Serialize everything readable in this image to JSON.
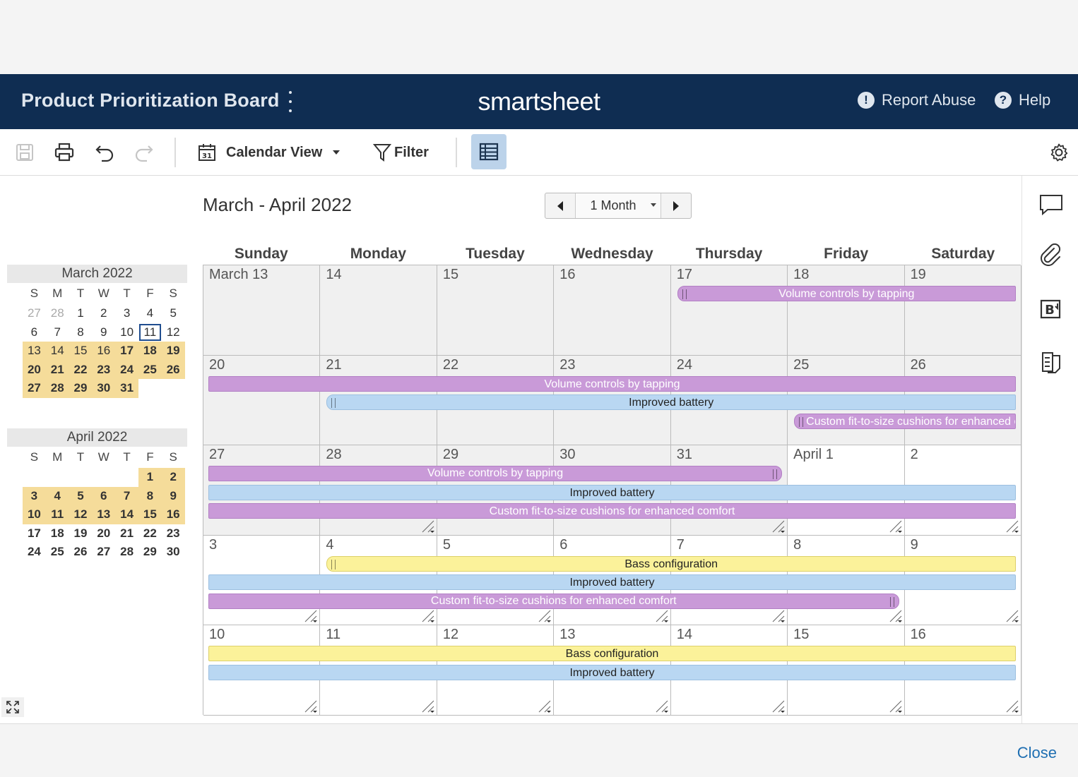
{
  "header": {
    "title": "Product Prioritization Board",
    "brand": "smartsheet",
    "report_abuse": "Report Abuse",
    "help": "Help"
  },
  "toolbar": {
    "view_label": "Calendar View",
    "filter_label": "Filter",
    "calendar_icon_day": "31"
  },
  "range": {
    "title": "March - April 2022",
    "period": "1 Month"
  },
  "mini_march": {
    "title": "March 2022",
    "dow": [
      "S",
      "M",
      "T",
      "W",
      "T",
      "F",
      "S"
    ],
    "weeks": [
      [
        {
          "d": "27",
          "c": "o"
        },
        {
          "d": "28",
          "c": "o"
        },
        {
          "d": "1"
        },
        {
          "d": "2"
        },
        {
          "d": "3"
        },
        {
          "d": "4"
        },
        {
          "d": "5"
        }
      ],
      [
        {
          "d": "6"
        },
        {
          "d": "7"
        },
        {
          "d": "8"
        },
        {
          "d": "9"
        },
        {
          "d": "10"
        },
        {
          "d": "11",
          "c": "t"
        },
        {
          "d": "12"
        }
      ],
      [
        {
          "d": "13",
          "c": "h"
        },
        {
          "d": "14",
          "c": "h"
        },
        {
          "d": "15",
          "c": "h"
        },
        {
          "d": "16",
          "c": "h"
        },
        {
          "d": "17",
          "c": "h b"
        },
        {
          "d": "18",
          "c": "h b"
        },
        {
          "d": "19",
          "c": "h b"
        }
      ],
      [
        {
          "d": "20",
          "c": "h b"
        },
        {
          "d": "21",
          "c": "h b"
        },
        {
          "d": "22",
          "c": "h b"
        },
        {
          "d": "23",
          "c": "h b"
        },
        {
          "d": "24",
          "c": "h b"
        },
        {
          "d": "25",
          "c": "h b"
        },
        {
          "d": "26",
          "c": "h b"
        }
      ],
      [
        {
          "d": "27",
          "c": "h b"
        },
        {
          "d": "28",
          "c": "h b"
        },
        {
          "d": "29",
          "c": "h b"
        },
        {
          "d": "30",
          "c": "h b"
        },
        {
          "d": "31",
          "c": "h b"
        },
        {
          "d": ""
        },
        {
          "d": ""
        }
      ]
    ]
  },
  "mini_april": {
    "title": "April 2022",
    "dow": [
      "S",
      "M",
      "T",
      "W",
      "T",
      "F",
      "S"
    ],
    "weeks": [
      [
        {
          "d": ""
        },
        {
          "d": ""
        },
        {
          "d": ""
        },
        {
          "d": ""
        },
        {
          "d": ""
        },
        {
          "d": "1",
          "c": "h b"
        },
        {
          "d": "2",
          "c": "h b"
        }
      ],
      [
        {
          "d": "3",
          "c": "h b"
        },
        {
          "d": "4",
          "c": "h b"
        },
        {
          "d": "5",
          "c": "h b"
        },
        {
          "d": "6",
          "c": "h b"
        },
        {
          "d": "7",
          "c": "h b"
        },
        {
          "d": "8",
          "c": "h b"
        },
        {
          "d": "9",
          "c": "h b"
        }
      ],
      [
        {
          "d": "10",
          "c": "h b"
        },
        {
          "d": "11",
          "c": "h b"
        },
        {
          "d": "12",
          "c": "h b"
        },
        {
          "d": "13",
          "c": "h b"
        },
        {
          "d": "14",
          "c": "h b"
        },
        {
          "d": "15",
          "c": "h b"
        },
        {
          "d": "16",
          "c": "h b"
        }
      ],
      [
        {
          "d": "17",
          "c": "b"
        },
        {
          "d": "18",
          "c": "b"
        },
        {
          "d": "19",
          "c": "b"
        },
        {
          "d": "20",
          "c": "b"
        },
        {
          "d": "21",
          "c": "b"
        },
        {
          "d": "22",
          "c": "b"
        },
        {
          "d": "23",
          "c": "b"
        }
      ],
      [
        {
          "d": "24",
          "c": "b"
        },
        {
          "d": "25",
          "c": "b"
        },
        {
          "d": "26",
          "c": "b"
        },
        {
          "d": "27",
          "c": "b"
        },
        {
          "d": "28",
          "c": "b"
        },
        {
          "d": "29",
          "c": "b"
        },
        {
          "d": "30",
          "c": "b"
        }
      ]
    ]
  },
  "calendar": {
    "day_names": [
      "Sunday",
      "Monday",
      "Tuesday",
      "Wednesday",
      "Thursday",
      "Friday",
      "Saturday"
    ],
    "weeks": [
      {
        "days": [
          "March 13",
          "14",
          "15",
          "16",
          "17",
          "18",
          "19"
        ],
        "past": [
          true,
          true,
          true,
          true,
          true,
          true,
          true
        ],
        "corner": [
          false,
          false,
          false,
          false,
          false,
          false,
          false
        ]
      },
      {
        "days": [
          "20",
          "21",
          "22",
          "23",
          "24",
          "25",
          "26"
        ],
        "past": [
          true,
          true,
          true,
          true,
          true,
          true,
          true
        ],
        "corner": [
          false,
          false,
          false,
          false,
          false,
          false,
          false
        ]
      },
      {
        "days": [
          "27",
          "28",
          "29",
          "30",
          "31",
          "April 1",
          "2"
        ],
        "past": [
          true,
          true,
          true,
          true,
          true,
          false,
          false
        ],
        "corner": [
          false,
          true,
          false,
          false,
          true,
          true,
          true
        ]
      },
      {
        "days": [
          "3",
          "4",
          "5",
          "6",
          "7",
          "8",
          "9"
        ],
        "past": [
          false,
          false,
          false,
          false,
          false,
          false,
          false
        ],
        "corner": [
          true,
          true,
          true,
          true,
          true,
          true,
          true
        ]
      },
      {
        "days": [
          "10",
          "11",
          "12",
          "13",
          "14",
          "15",
          "16"
        ],
        "past": [
          false,
          false,
          false,
          false,
          false,
          false,
          false
        ],
        "corner": [
          true,
          true,
          true,
          true,
          true,
          true,
          true
        ]
      }
    ],
    "events": [
      {
        "week": 0,
        "row": 0,
        "start": 4,
        "end": 6,
        "label": "Volume controls by tapping",
        "color": "purple",
        "starts": true,
        "ends": false
      },
      {
        "week": 1,
        "row": 0,
        "start": 0,
        "end": 6,
        "label": "Volume controls by tapping",
        "color": "purple",
        "starts": false,
        "ends": false
      },
      {
        "week": 1,
        "row": 1,
        "start": 1,
        "end": 6,
        "label": "Improved battery",
        "color": "blue",
        "starts": true,
        "ends": false
      },
      {
        "week": 1,
        "row": 2,
        "start": 5,
        "end": 6,
        "label": "Custom fit-to-size cushions for enhanced comfort",
        "color": "purple",
        "starts": true,
        "ends": false
      },
      {
        "week": 2,
        "row": 0,
        "start": 0,
        "end": 4,
        "label": "Volume controls by tapping",
        "color": "purple",
        "starts": false,
        "ends": true
      },
      {
        "week": 2,
        "row": 1,
        "start": 0,
        "end": 6,
        "label": "Improved battery",
        "color": "blue",
        "starts": false,
        "ends": false
      },
      {
        "week": 2,
        "row": 2,
        "start": 0,
        "end": 6,
        "label": "Custom fit-to-size cushions for enhanced comfort",
        "color": "purple",
        "starts": false,
        "ends": false
      },
      {
        "week": 3,
        "row": 0,
        "start": 1,
        "end": 6,
        "label": "Bass configuration",
        "color": "yellow",
        "starts": true,
        "ends": false
      },
      {
        "week": 3,
        "row": 1,
        "start": 0,
        "end": 6,
        "label": "Improved battery",
        "color": "blue",
        "starts": false,
        "ends": false
      },
      {
        "week": 3,
        "row": 2,
        "start": 0,
        "end": 5,
        "label": "Custom fit-to-size cushions for enhanced comfort",
        "color": "purple",
        "starts": false,
        "ends": true
      },
      {
        "week": 4,
        "row": 0,
        "start": 0,
        "end": 6,
        "label": "Bass configuration",
        "color": "yellow",
        "starts": false,
        "ends": false
      },
      {
        "week": 4,
        "row": 1,
        "start": 0,
        "end": 6,
        "label": "Improved battery",
        "color": "blue",
        "starts": false,
        "ends": false
      }
    ]
  },
  "footer": {
    "close_label": "Close"
  }
}
